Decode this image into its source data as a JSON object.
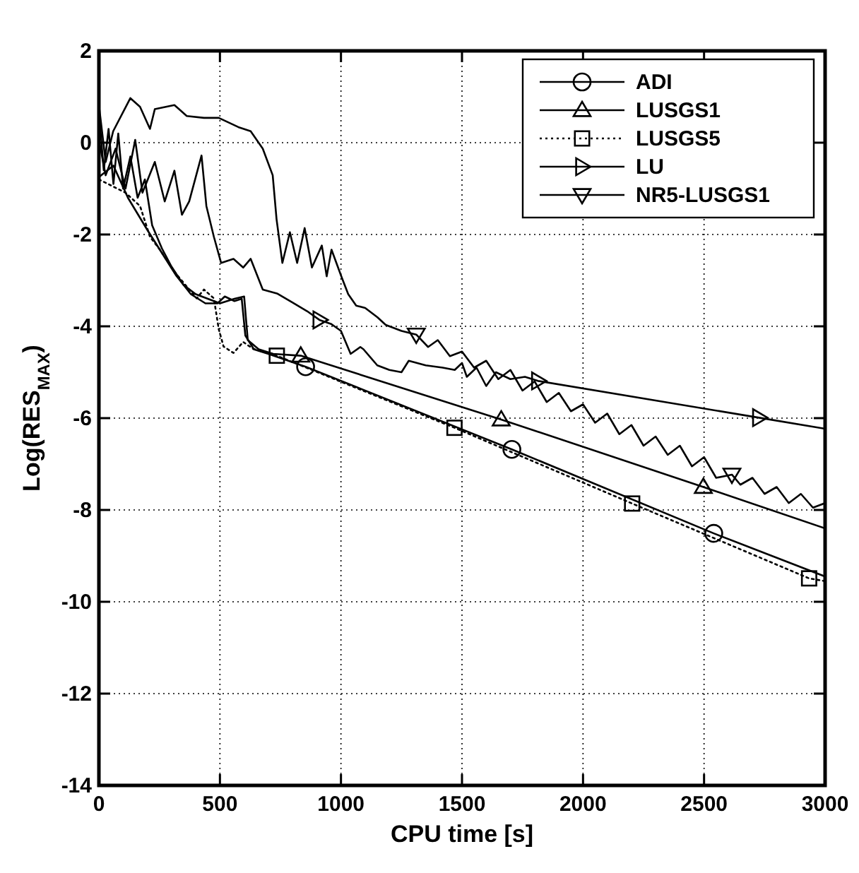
{
  "chart_data": {
    "type": "line",
    "xlabel": "CPU time [s]",
    "ylabel": "Log(RES$_{MAX}$)",
    "xlim": [
      0,
      3000
    ],
    "ylim": [
      -14,
      2
    ],
    "xticks": [
      0,
      500,
      1000,
      1500,
      2000,
      2500,
      3000
    ],
    "yticks": [
      -14,
      -12,
      -10,
      -8,
      -6,
      -4,
      -2,
      0,
      2
    ],
    "grid": true,
    "legend": "top right",
    "series": [
      {
        "name": "ADI",
        "color": "#000000",
        "line_style": "solid",
        "x": [
          0,
          60,
          120,
          200,
          260,
          320,
          380,
          440,
          490,
          520,
          560,
          590,
          605,
          640,
          700,
          854,
          1706,
          2540,
          3000
        ],
        "values": [
          -0.75,
          -0.5,
          -1.2,
          -1.9,
          -2.4,
          -2.9,
          -3.3,
          -3.5,
          -3.5,
          -3.35,
          -3.45,
          -3.4,
          -4.2,
          -4.5,
          -4.6,
          -4.88,
          -6.68,
          -8.51,
          -9.45
        ]
      },
      {
        "name": "LUSGS1",
        "color": "#000000",
        "line_style": "solid",
        "x": [
          0,
          20,
          40,
          60,
          80,
          100,
          130,
          160,
          190,
          220,
          260,
          300,
          350,
          400,
          450,
          500,
          560,
          600,
          615,
          660,
          720,
          834,
          1662,
          2497,
          3000
        ],
        "values": [
          0.7,
          -0.6,
          0.3,
          -0.9,
          0.2,
          -1.0,
          -0.3,
          -1.2,
          -0.8,
          -1.8,
          -2.3,
          -2.7,
          -3.1,
          -3.3,
          -3.4,
          -3.5,
          -3.4,
          -3.35,
          -4.3,
          -4.5,
          -4.6,
          -4.64,
          -6.03,
          -7.5,
          -8.4
        ]
      },
      {
        "name": "LUSGS5",
        "color": "#000000",
        "line_style": "dotted",
        "x": [
          0,
          110,
          170,
          211,
          252,
          312,
          373,
          404,
          434,
          475,
          495,
          515,
          556,
          596,
          637,
          735,
          1469,
          2203,
          2934,
          3000
        ],
        "values": [
          -0.8,
          -1.09,
          -1.38,
          -2.05,
          -2.33,
          -2.81,
          -3.2,
          -3.39,
          -3.2,
          -3.39,
          -4.06,
          -4.44,
          -4.58,
          -4.34,
          -4.49,
          -4.64,
          -6.21,
          -7.86,
          -9.49,
          -9.55
        ]
      },
      {
        "name": "LU",
        "color": "#000000",
        "line_style": "solid",
        "x": [
          0,
          28,
          69,
          110,
          150,
          180,
          231,
          272,
          312,
          343,
          373,
          424,
          444,
          475,
          505,
          556,
          596,
          627,
          677,
          738,
          799,
          860,
          911,
          960,
          1000,
          1040,
          1080,
          1093,
          1150,
          1200,
          1250,
          1280,
          1350,
          1420,
          1470,
          1500,
          1520,
          1560,
          1600,
          1640,
          1700,
          1760,
          1814,
          2727,
          3000
        ],
        "values": [
          0.06,
          -0.71,
          -0.13,
          -1.0,
          0.06,
          -1.09,
          -0.42,
          -1.28,
          -0.61,
          -1.57,
          -1.28,
          -0.28,
          -1.38,
          -2.05,
          -2.62,
          -2.53,
          -2.72,
          -2.53,
          -3.2,
          -3.29,
          -3.48,
          -3.67,
          -3.86,
          -3.95,
          -4.1,
          -4.6,
          -4.45,
          -4.5,
          -4.85,
          -4.95,
          -5.0,
          -4.75,
          -4.85,
          -4.9,
          -4.95,
          -4.8,
          -5.1,
          -4.9,
          -5.3,
          -5.0,
          -5.15,
          -5.1,
          -5.19,
          -5.99,
          -6.23
        ]
      },
      {
        "name": "NR5-LUSGS1",
        "color": "#000000",
        "line_style": "solid",
        "x": [
          0,
          28,
          59,
          130,
          170,
          211,
          231,
          312,
          363,
          434,
          495,
          576,
          627,
          677,
          718,
          734,
          758,
          789,
          819,
          850,
          880,
          921,
          941,
          961,
          1002,
          1030,
          1063,
          1100,
          1150,
          1185,
          1250,
          1311,
          1360,
          1400,
          1450,
          1500,
          1550,
          1600,
          1650,
          1700,
          1750,
          1800,
          1850,
          1900,
          1950,
          2000,
          2050,
          2100,
          2150,
          2200,
          2250,
          2300,
          2350,
          2400,
          2450,
          2500,
          2550,
          2615,
          2650,
          2700,
          2750,
          2800,
          2850,
          2900,
          2950,
          3000
        ],
        "values": [
          0.82,
          -0.42,
          0.25,
          0.97,
          0.78,
          0.3,
          0.73,
          0.82,
          0.58,
          0.54,
          0.54,
          0.34,
          0.25,
          -0.13,
          -0.71,
          -1.67,
          -2.62,
          -1.95,
          -2.62,
          -1.86,
          -2.72,
          -2.24,
          -2.91,
          -2.33,
          -2.92,
          -3.3,
          -3.55,
          -3.6,
          -3.8,
          -3.97,
          -4.1,
          -4.18,
          -4.45,
          -4.3,
          -4.65,
          -4.55,
          -4.9,
          -4.75,
          -5.15,
          -4.95,
          -5.4,
          -5.2,
          -5.65,
          -5.45,
          -5.85,
          -5.7,
          -6.1,
          -5.9,
          -6.35,
          -6.15,
          -6.6,
          -6.4,
          -6.8,
          -6.6,
          -7.05,
          -6.85,
          -7.3,
          -7.23,
          -7.45,
          -7.3,
          -7.65,
          -7.5,
          -7.85,
          -7.65,
          -7.95,
          -7.85
        ]
      },
      {
        "type": "scatter",
        "color": "#000000",
        "marker": "circle",
        "x": [
          854,
          1706,
          2540
        ],
        "values": [
          -4.88,
          -6.68,
          -8.51
        ]
      },
      {
        "type": "scatter",
        "color": "#000000",
        "marker": "triangle",
        "x": [
          834,
          1662,
          2497
        ],
        "values": [
          -4.64,
          -6.03,
          -7.5
        ]
      },
      {
        "type": "scatter",
        "color": "#000000",
        "marker": "square",
        "x": [
          735,
          1469,
          2203,
          2934
        ],
        "values": [
          -4.64,
          -6.21,
          -7.86,
          -9.49
        ]
      },
      {
        "type": "scatter",
        "color": "#000000",
        "marker": "triangle-right",
        "x": [
          911,
          1814,
          2727
        ],
        "values": [
          -3.86,
          -5.19,
          -5.99
        ]
      },
      {
        "type": "scatter",
        "color": "#000000",
        "marker": "triangle-down",
        "x": [
          1311,
          2615
        ],
        "values": [
          -4.18,
          -7.23
        ]
      }
    ]
  }
}
